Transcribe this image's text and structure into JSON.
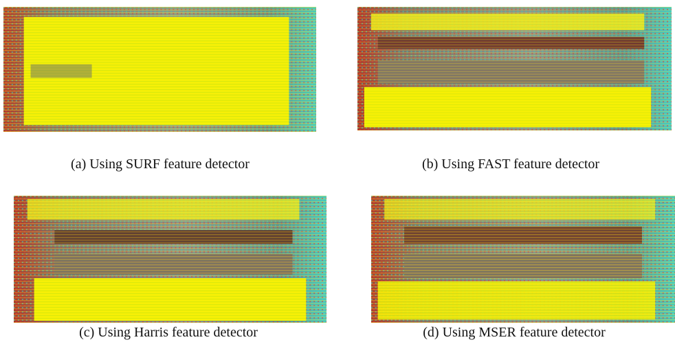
{
  "figures": [
    {
      "caption": "(a) Using SURF feature detector"
    },
    {
      "caption": "(b) Using FAST feature detector"
    },
    {
      "caption": "(c) Using Harris feature detector"
    },
    {
      "caption": "(d) Using MSER feature detector"
    }
  ]
}
